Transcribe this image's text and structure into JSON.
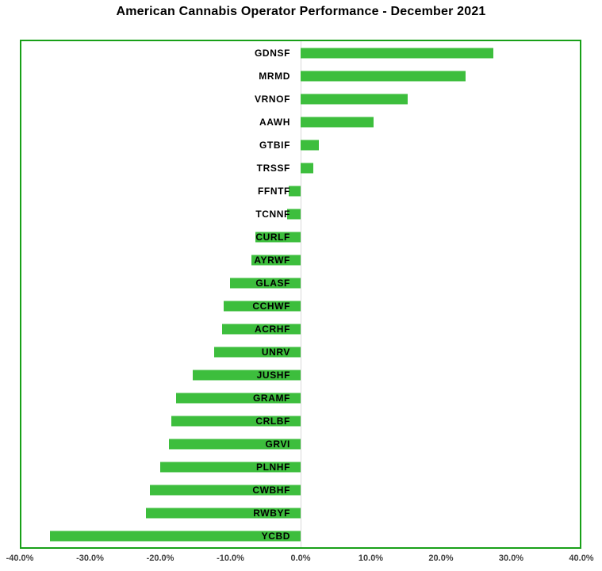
{
  "title": "American Cannabis Operator Performance - December 2021",
  "colors": {
    "bar": "#3dbe3d",
    "plot_border": "#18a018",
    "zero_line": "#d9d9d9",
    "title_text": "#000000",
    "ticker_text": "#000000",
    "axis_text": "#3f3f3f",
    "background": "#ffffff"
  },
  "chart_data": {
    "type": "bar",
    "orientation": "horizontal",
    "title": "American Cannabis Operator Performance - December 2021",
    "categories": [
      "GDNSF",
      "MRMD",
      "VRNOF",
      "AAWH",
      "GTBIF",
      "TRSSF",
      "FFNTF",
      "TCNNF",
      "CURLF",
      "AYRWF",
      "GLASF",
      "CCHWF",
      "ACRHF",
      "UNRV",
      "JUSHF",
      "GRAMF",
      "CRLBF",
      "GRVI",
      "PLNHF",
      "CWBHF",
      "RWBYF",
      "YCBD"
    ],
    "values_pct": [
      27.6,
      23.6,
      15.3,
      10.4,
      2.6,
      1.8,
      -1.7,
      -1.9,
      -6.5,
      -7.1,
      -10.1,
      -11.0,
      -11.2,
      -12.4,
      -15.4,
      -17.8,
      -18.5,
      -18.9,
      -20.1,
      -21.6,
      -22.2,
      -35.9
    ],
    "xlabel": "",
    "ylabel": "",
    "xlim_pct": [
      -40,
      40
    ],
    "x_tick_labels": [
      "-40.0%",
      "-30.0%",
      "-20.0%",
      "-10.0%",
      "0.0%",
      "10.0%",
      "20.0%",
      "30.0%",
      "40.0%"
    ],
    "grid": "zero-axis-only",
    "legend": "none",
    "bar_label_position": "left-of-zero-axis"
  }
}
